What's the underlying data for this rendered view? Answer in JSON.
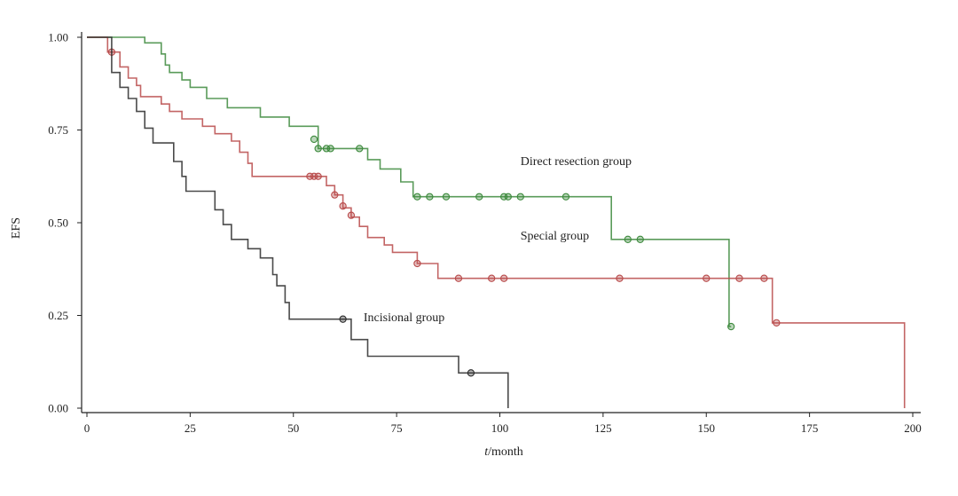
{
  "chart_data": {
    "type": "line",
    "subtype": "kaplan-meier-step",
    "title": "",
    "ylabel": "EFS",
    "xlabel_italic": "t",
    "xlabel_rest": "/month",
    "xlim": [
      0,
      200
    ],
    "ylim": [
      0,
      1
    ],
    "x_ticks": [
      0,
      25,
      50,
      75,
      100,
      125,
      150,
      175,
      200
    ],
    "y_ticks": [
      0.0,
      0.25,
      0.5,
      0.75,
      1.0
    ],
    "y_tick_labels": [
      "0.00",
      "0.25",
      "0.50",
      "0.75",
      "1.00"
    ],
    "grid": false,
    "series": [
      {
        "name": "Direct resection group",
        "color": "#3d8a3d",
        "label_pos": [
          105,
          0.655
        ],
        "steps": [
          [
            0,
            1.0
          ],
          [
            14,
            0.985
          ],
          [
            18,
            0.955
          ],
          [
            19,
            0.925
          ],
          [
            20,
            0.905
          ],
          [
            23,
            0.885
          ],
          [
            25,
            0.865
          ],
          [
            29,
            0.835
          ],
          [
            34,
            0.81
          ],
          [
            42,
            0.785
          ],
          [
            49,
            0.76
          ],
          [
            56,
            0.7
          ],
          [
            65,
            0.7
          ],
          [
            68,
            0.67
          ],
          [
            71,
            0.645
          ],
          [
            76,
            0.61
          ],
          [
            79,
            0.57
          ],
          [
            126,
            0.57
          ],
          [
            127,
            0.455
          ],
          [
            155,
            0.455
          ],
          [
            155.5,
            0.22
          ],
          [
            156,
            0.22
          ]
        ],
        "censored": [
          [
            55,
            0.725
          ],
          [
            56,
            0.7
          ],
          [
            58,
            0.7
          ],
          [
            59,
            0.7
          ],
          [
            66,
            0.7
          ],
          [
            80,
            0.57
          ],
          [
            83,
            0.57
          ],
          [
            87,
            0.57
          ],
          [
            95,
            0.57
          ],
          [
            101,
            0.57
          ],
          [
            102,
            0.57
          ],
          [
            105,
            0.57
          ],
          [
            116,
            0.57
          ],
          [
            131,
            0.455
          ],
          [
            134,
            0.455
          ],
          [
            156,
            0.22
          ]
        ]
      },
      {
        "name": "Special group",
        "color": "#b84a4a",
        "label_pos": [
          105,
          0.455
        ],
        "steps": [
          [
            0,
            1.0
          ],
          [
            5,
            0.96
          ],
          [
            8,
            0.92
          ],
          [
            10,
            0.89
          ],
          [
            12,
            0.87
          ],
          [
            13,
            0.84
          ],
          [
            18,
            0.82
          ],
          [
            20,
            0.8
          ],
          [
            23,
            0.78
          ],
          [
            28,
            0.76
          ],
          [
            31,
            0.74
          ],
          [
            35,
            0.72
          ],
          [
            37,
            0.69
          ],
          [
            39,
            0.66
          ],
          [
            40,
            0.625
          ],
          [
            58,
            0.6
          ],
          [
            60,
            0.575
          ],
          [
            62,
            0.54
          ],
          [
            64,
            0.515
          ],
          [
            66,
            0.49
          ],
          [
            68,
            0.46
          ],
          [
            72,
            0.44
          ],
          [
            74,
            0.42
          ],
          [
            80,
            0.39
          ],
          [
            85,
            0.35
          ],
          [
            165,
            0.35
          ],
          [
            166,
            0.23
          ],
          [
            198,
            0.23
          ],
          [
            198,
            0.0
          ]
        ],
        "censored": [
          [
            6,
            0.96
          ],
          [
            54,
            0.625
          ],
          [
            55,
            0.625
          ],
          [
            56,
            0.625
          ],
          [
            60,
            0.575
          ],
          [
            62,
            0.545
          ],
          [
            64,
            0.52
          ],
          [
            80,
            0.39
          ],
          [
            90,
            0.35
          ],
          [
            98,
            0.35
          ],
          [
            101,
            0.35
          ],
          [
            129,
            0.35
          ],
          [
            150,
            0.35
          ],
          [
            158,
            0.35
          ],
          [
            164,
            0.35
          ],
          [
            167,
            0.23
          ]
        ]
      },
      {
        "name": "Incisional group",
        "color": "#2a2a2a",
        "label_pos": [
          67,
          0.235
        ],
        "steps": [
          [
            0,
            1.0
          ],
          [
            6,
            0.905
          ],
          [
            8,
            0.865
          ],
          [
            10,
            0.835
          ],
          [
            12,
            0.8
          ],
          [
            14,
            0.755
          ],
          [
            16,
            0.715
          ],
          [
            21,
            0.665
          ],
          [
            23,
            0.625
          ],
          [
            24,
            0.585
          ],
          [
            31,
            0.535
          ],
          [
            33,
            0.495
          ],
          [
            35,
            0.455
          ],
          [
            39,
            0.43
          ],
          [
            42,
            0.405
          ],
          [
            45,
            0.36
          ],
          [
            46,
            0.33
          ],
          [
            48,
            0.285
          ],
          [
            49,
            0.24
          ],
          [
            63,
            0.24
          ],
          [
            64,
            0.185
          ],
          [
            68,
            0.14
          ],
          [
            90,
            0.095
          ],
          [
            102,
            0.095
          ],
          [
            102,
            0.0
          ]
        ],
        "censored": [
          [
            62,
            0.24
          ],
          [
            93,
            0.095
          ]
        ]
      }
    ]
  }
}
